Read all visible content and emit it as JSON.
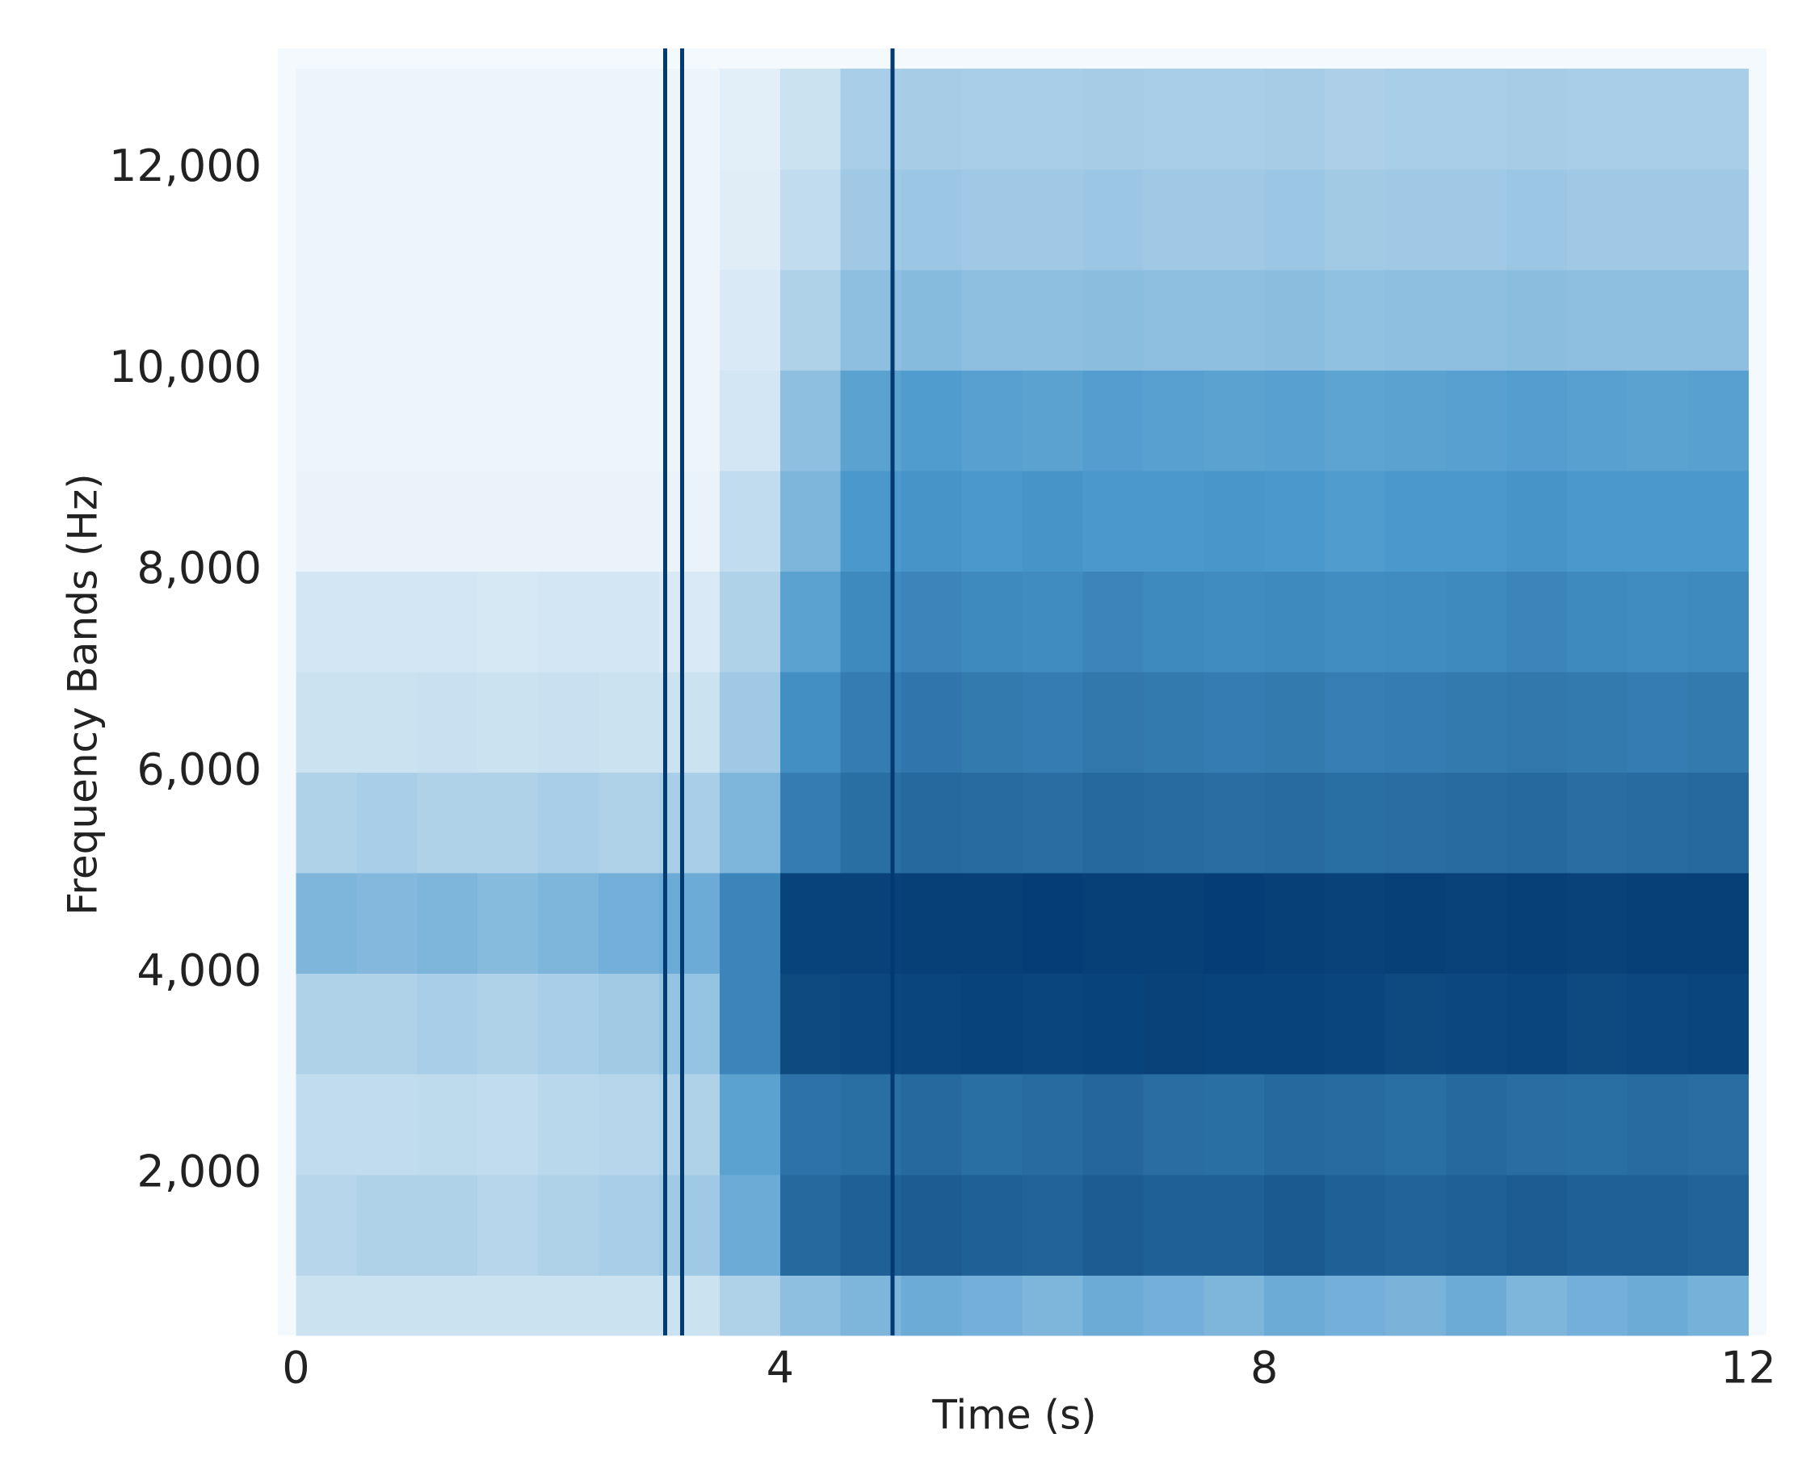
{
  "chart_data": {
    "type": "heatmap",
    "x_label": "Time (s)",
    "y_label": "Frequency Bands (Hz)",
    "xlim": [
      -0.15,
      12.15
    ],
    "ylim": [
      400,
      13200
    ],
    "xticks": [
      0,
      4,
      8,
      12
    ],
    "yticks": [
      {
        "value": 2000,
        "label": "2,000"
      },
      {
        "value": 4000,
        "label": "4,000"
      },
      {
        "value": 6000,
        "label": "6,000"
      },
      {
        "value": 8000,
        "label": "8,000"
      },
      {
        "value": 10000,
        "label": "10,000"
      },
      {
        "value": 12000,
        "label": "12,000"
      }
    ],
    "xbins": [
      0,
      0.5,
      1,
      1.5,
      2,
      2.5,
      3,
      3.5,
      4,
      4.5,
      5,
      5.5,
      6,
      6.5,
      7,
      7.5,
      8,
      8.5,
      9,
      9.5,
      10,
      10.5,
      11,
      11.5,
      12
    ],
    "ybins": [
      400,
      1000,
      2000,
      3000,
      4000,
      5000,
      6000,
      7000,
      8000,
      9000,
      10000,
      11000,
      12000,
      13000
    ],
    "colormap": [
      "#f4f9fd",
      "#4a98cc",
      "#023a72"
    ],
    "values": [
      [
        0.12,
        0.12,
        0.12,
        0.12,
        0.12,
        0.12,
        0.12,
        0.2,
        0.3,
        0.35,
        0.4,
        0.38,
        0.35,
        0.4,
        0.38,
        0.35,
        0.4,
        0.38,
        0.36,
        0.4,
        0.35,
        0.38,
        0.4,
        0.37
      ],
      [
        0.18,
        0.2,
        0.2,
        0.18,
        0.2,
        0.22,
        0.25,
        0.4,
        0.75,
        0.8,
        0.82,
        0.8,
        0.78,
        0.82,
        0.8,
        0.8,
        0.83,
        0.8,
        0.78,
        0.8,
        0.82,
        0.8,
        0.8,
        0.78
      ],
      [
        0.15,
        0.15,
        0.16,
        0.15,
        0.17,
        0.18,
        0.2,
        0.45,
        0.7,
        0.72,
        0.75,
        0.72,
        0.74,
        0.76,
        0.73,
        0.72,
        0.75,
        0.74,
        0.72,
        0.75,
        0.73,
        0.72,
        0.74,
        0.73
      ],
      [
        0.2,
        0.2,
        0.22,
        0.2,
        0.22,
        0.24,
        0.28,
        0.6,
        0.92,
        0.93,
        0.94,
        0.95,
        0.94,
        0.95,
        0.96,
        0.95,
        0.95,
        0.94,
        0.92,
        0.93,
        0.94,
        0.92,
        0.93,
        0.94
      ],
      [
        0.35,
        0.33,
        0.35,
        0.32,
        0.35,
        0.38,
        0.4,
        0.6,
        0.95,
        0.96,
        0.97,
        0.97,
        0.98,
        0.97,
        0.97,
        0.98,
        0.97,
        0.96,
        0.97,
        0.96,
        0.97,
        0.96,
        0.97,
        0.97
      ],
      [
        0.2,
        0.22,
        0.2,
        0.2,
        0.22,
        0.2,
        0.22,
        0.35,
        0.65,
        0.72,
        0.75,
        0.74,
        0.73,
        0.75,
        0.74,
        0.73,
        0.74,
        0.72,
        0.73,
        0.74,
        0.75,
        0.73,
        0.74,
        0.75
      ],
      [
        0.12,
        0.12,
        0.13,
        0.12,
        0.13,
        0.12,
        0.12,
        0.25,
        0.55,
        0.65,
        0.68,
        0.66,
        0.65,
        0.67,
        0.66,
        0.65,
        0.66,
        0.64,
        0.65,
        0.66,
        0.67,
        0.66,
        0.65,
        0.66
      ],
      [
        0.1,
        0.1,
        0.1,
        0.09,
        0.1,
        0.1,
        0.08,
        0.2,
        0.45,
        0.58,
        0.6,
        0.58,
        0.57,
        0.6,
        0.58,
        0.57,
        0.58,
        0.56,
        0.57,
        0.58,
        0.6,
        0.58,
        0.57,
        0.58
      ],
      [
        0.03,
        0.03,
        0.03,
        0.03,
        0.03,
        0.03,
        0.03,
        0.15,
        0.35,
        0.5,
        0.52,
        0.5,
        0.52,
        0.5,
        0.5,
        0.51,
        0.5,
        0.48,
        0.5,
        0.5,
        0.52,
        0.5,
        0.5,
        0.5
      ],
      [
        0.02,
        0.02,
        0.02,
        0.02,
        0.02,
        0.02,
        0.02,
        0.1,
        0.3,
        0.45,
        0.48,
        0.46,
        0.45,
        0.47,
        0.46,
        0.45,
        0.46,
        0.44,
        0.45,
        0.46,
        0.47,
        0.46,
        0.45,
        0.46
      ],
      [
        0.02,
        0.02,
        0.02,
        0.02,
        0.02,
        0.02,
        0.02,
        0.08,
        0.2,
        0.3,
        0.32,
        0.3,
        0.3,
        0.31,
        0.3,
        0.3,
        0.31,
        0.29,
        0.3,
        0.3,
        0.31,
        0.3,
        0.3,
        0.3
      ],
      [
        0.02,
        0.02,
        0.02,
        0.02,
        0.02,
        0.02,
        0.02,
        0.06,
        0.15,
        0.25,
        0.26,
        0.25,
        0.25,
        0.26,
        0.25,
        0.25,
        0.26,
        0.24,
        0.25,
        0.25,
        0.26,
        0.25,
        0.25,
        0.25
      ],
      [
        0.02,
        0.02,
        0.02,
        0.02,
        0.02,
        0.02,
        0.02,
        0.05,
        0.12,
        0.22,
        0.23,
        0.22,
        0.22,
        0.23,
        0.22,
        0.22,
        0.23,
        0.21,
        0.22,
        0.22,
        0.23,
        0.22,
        0.22,
        0.22
      ]
    ],
    "vertical_lines": [
      3.05,
      3.19,
      4.93
    ],
    "line_color": "#023a72"
  }
}
